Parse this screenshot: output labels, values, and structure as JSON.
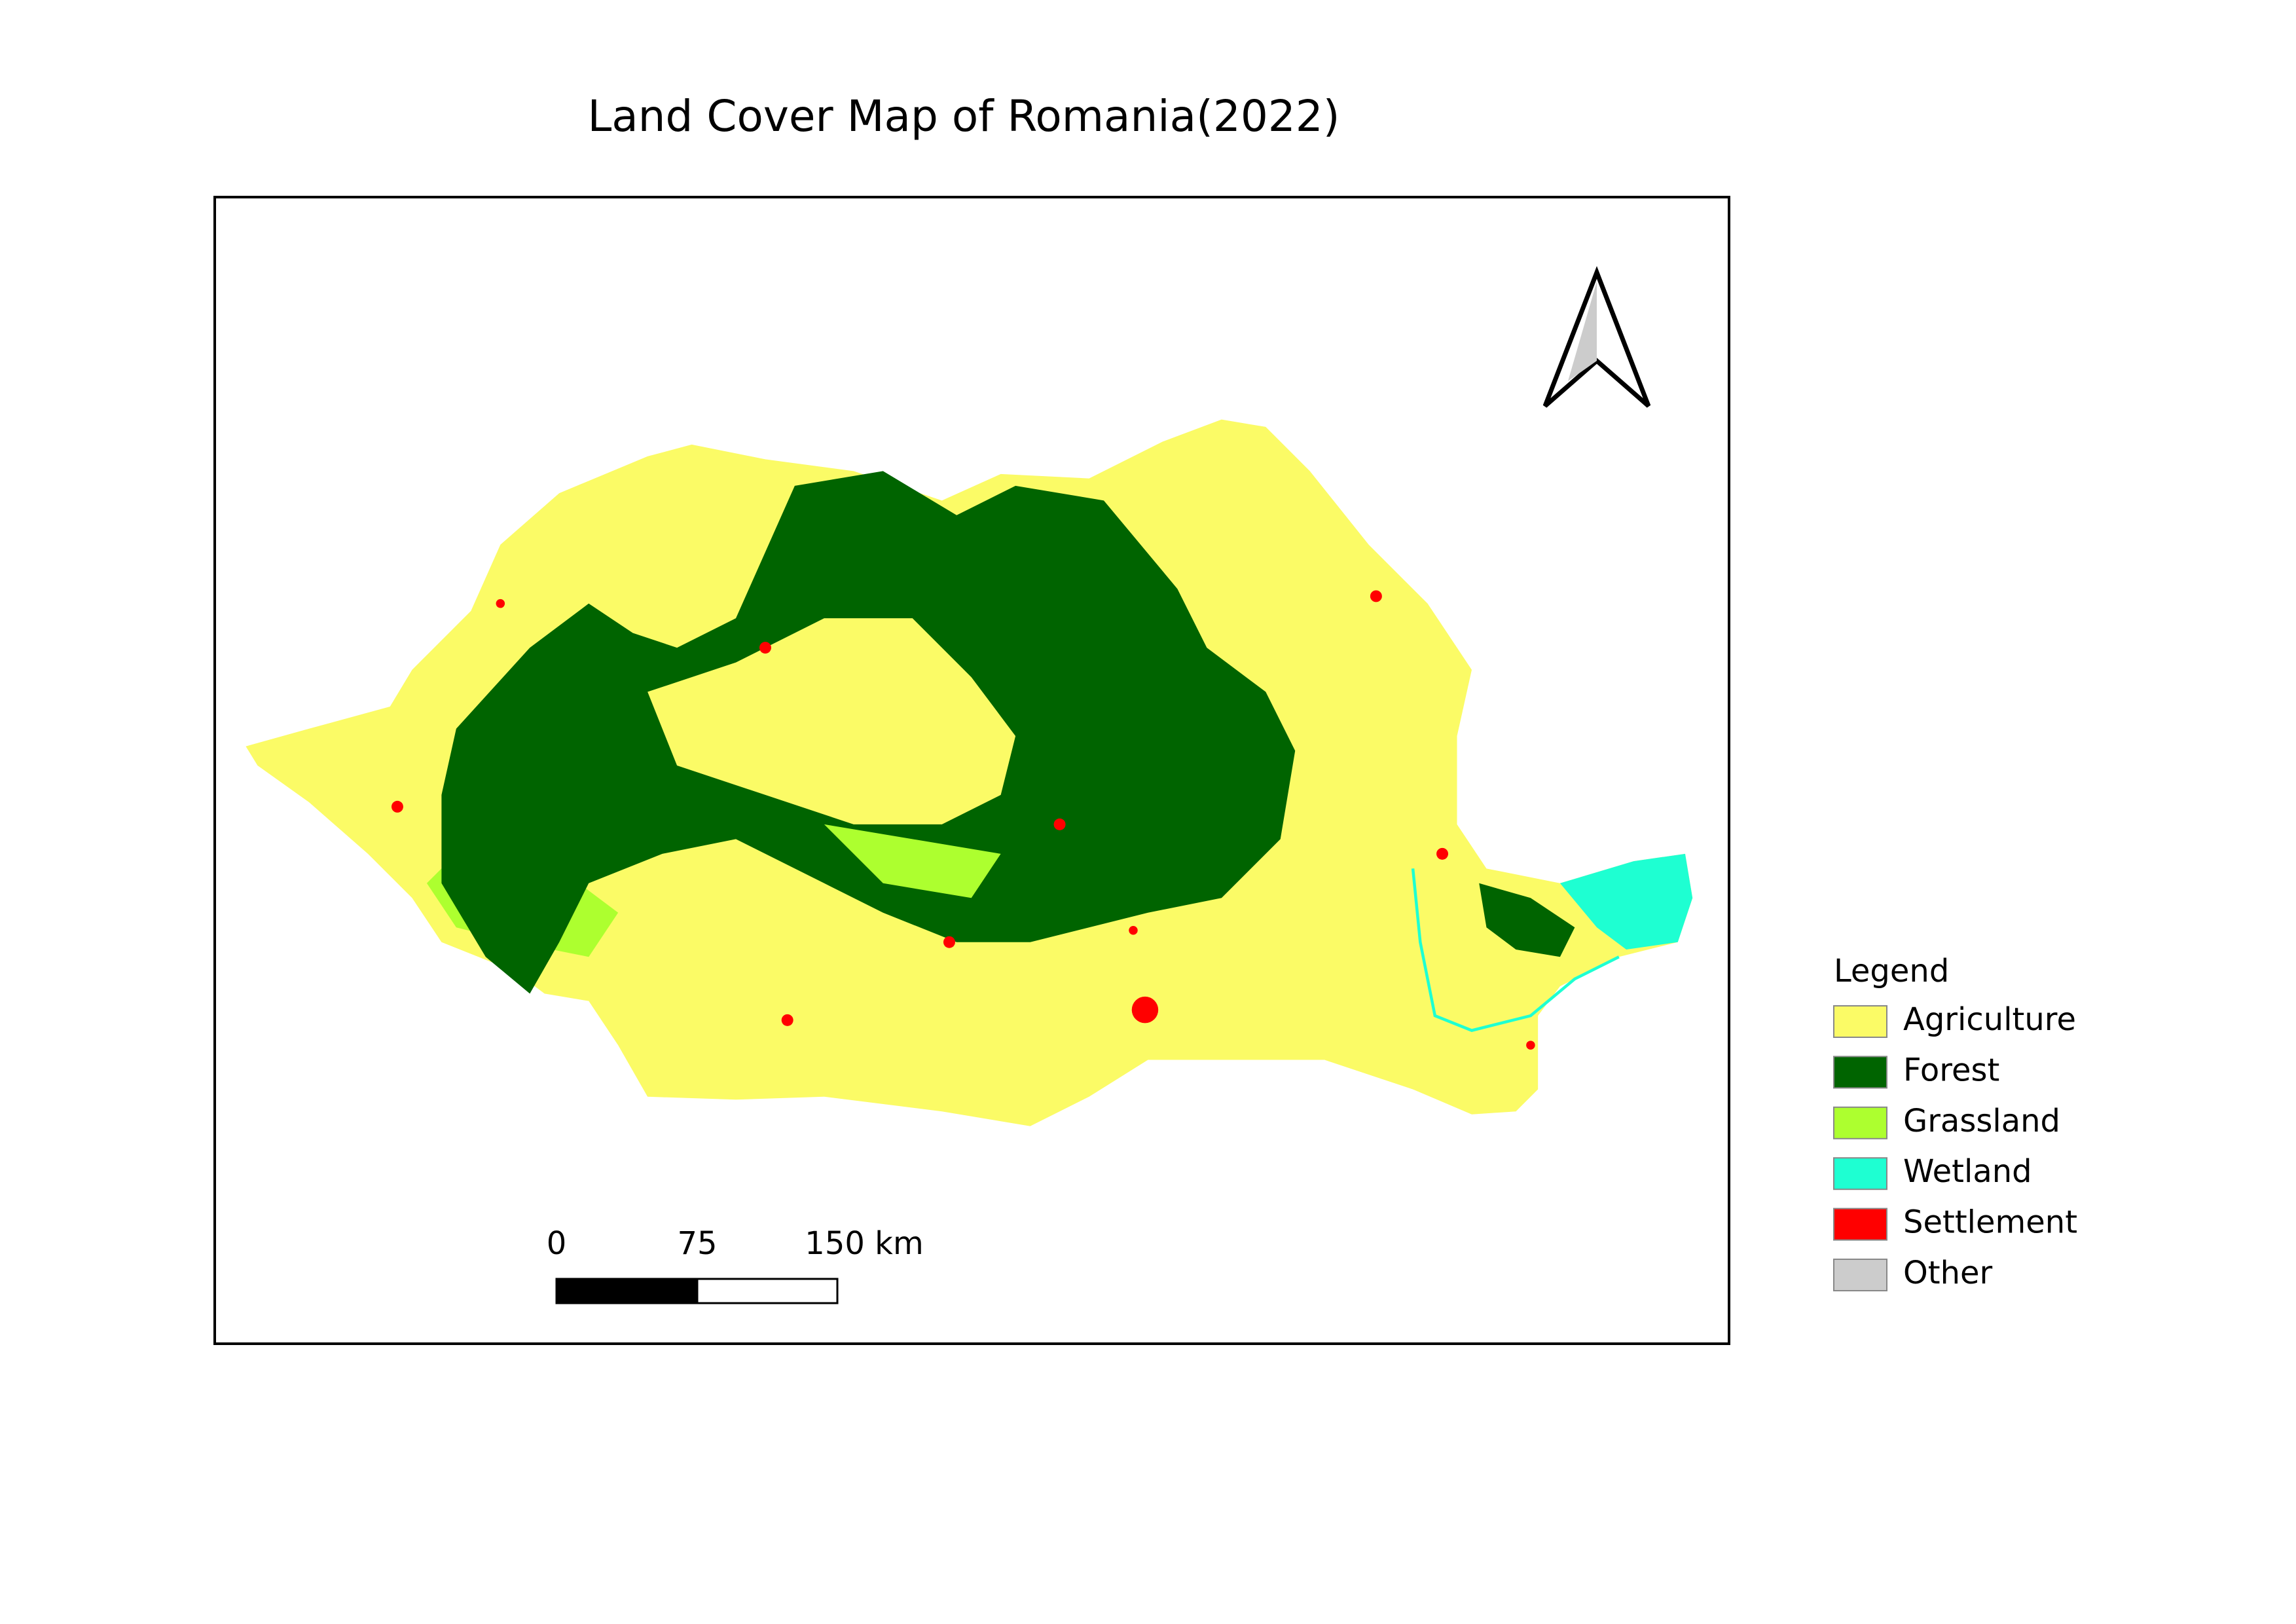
{
  "title": "Land Cover Map of Romania(2022)",
  "legend": {
    "title": "Legend",
    "items": [
      {
        "label": "Agriculture",
        "color": "#fbfb66"
      },
      {
        "label": "Forest",
        "color": "#006400"
      },
      {
        "label": "Grassland",
        "color": "#adff2f"
      },
      {
        "label": "Wetland",
        "color": "#1effd2"
      },
      {
        "label": "Settlement",
        "color": "#ff0000"
      },
      {
        "label": "Other",
        "color": "#cccccc"
      }
    ]
  },
  "scale_bar": {
    "labels": [
      "0",
      "75",
      "150 km"
    ]
  }
}
